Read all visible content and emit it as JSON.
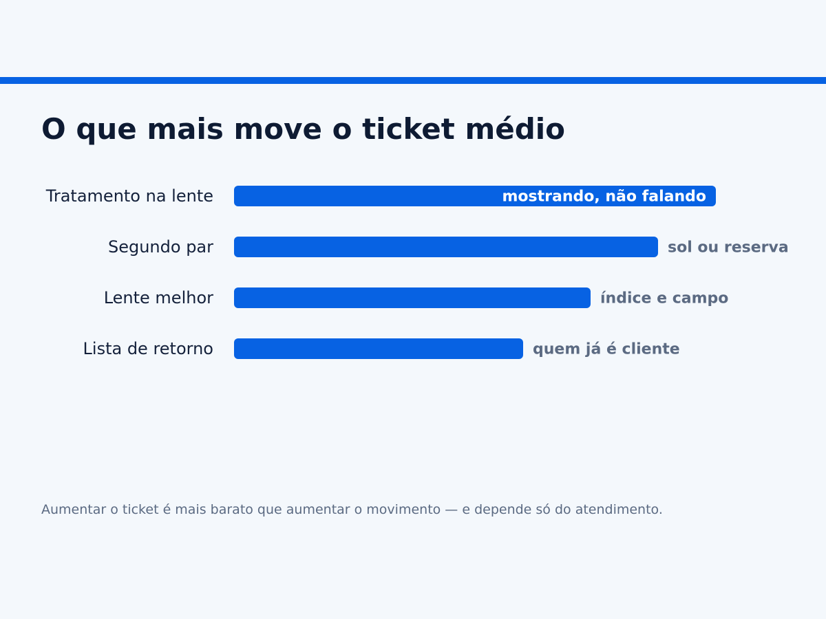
{
  "page": {
    "title": "O que mais move o ticket médio",
    "footnote": "Aumentar o ticket é mais barato que aumentar o movimento — e depende só do atendimento."
  },
  "colors": {
    "background": "#f4f8fc",
    "accent": "#0762e3",
    "title_text": "#0e1b33",
    "category_text": "#14213b",
    "muted_text": "#5b6a82",
    "inside_label_text": "#ffffff"
  },
  "chart_data": {
    "type": "bar",
    "orientation": "horizontal",
    "title": "O que mais move o ticket médio",
    "xlabel": "",
    "ylabel": "",
    "xlim": [
      0,
      100
    ],
    "grid": false,
    "legend": "none",
    "categories": [
      "Tratamento na lente",
      "Segundo par",
      "Lente melhor",
      "Lista de retorno"
    ],
    "values": [
      100,
      88,
      74,
      60
    ],
    "labels": [
      "mostrando, não falando",
      "sol ou reserva",
      "índice e campo",
      "quem já é cliente"
    ]
  }
}
